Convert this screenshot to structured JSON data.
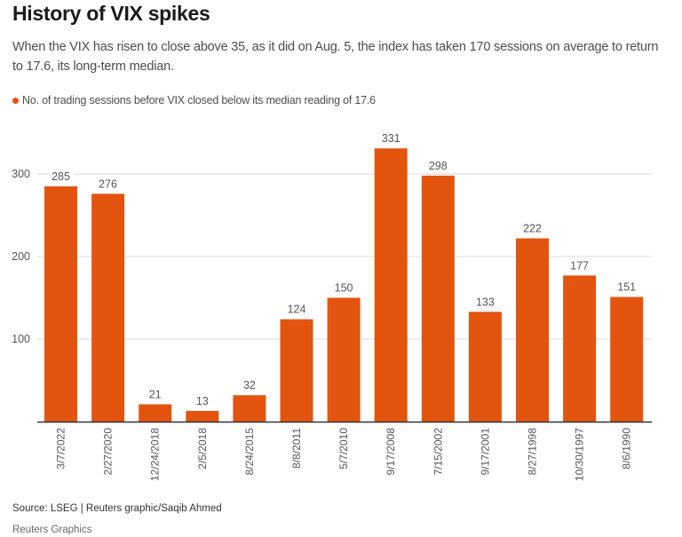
{
  "header": {
    "title": "History of VIX spikes",
    "subtitle": "When the VIX has risen to close above 35, as it did on Aug. 5, the index has taken 170 sessions on average to return to 17.6, its long-term median."
  },
  "footer": {
    "source": "Source: LSEG | Reuters graphic/Saqib Ahmed",
    "credit": "Reuters Graphics"
  },
  "colors": {
    "bar": "#e3550f",
    "grid": "#d9d9d9",
    "axis": "#333333",
    "label": "#555555"
  },
  "chart_data": {
    "type": "bar",
    "title": "History of VIX spikes",
    "xlabel": "",
    "ylabel": "",
    "legend": {
      "position": "top-left",
      "entries": [
        "No. of trading sessions before VIX closed below its median reading of 17.6"
      ]
    },
    "categories": [
      "3/7/2022",
      "2/27/2020",
      "12/24/2018",
      "2/5/2018",
      "8/24/2015",
      "8/8/2011",
      "5/7/2010",
      "9/17/2008",
      "7/15/2002",
      "9/17/2001",
      "8/27/1998",
      "10/30/1997",
      "8/6/1990"
    ],
    "series": [
      {
        "name": "No. of trading sessions before VIX closed below its median reading of 17.6",
        "values": [
          285,
          276,
          21,
          13,
          32,
          124,
          150,
          331,
          298,
          133,
          222,
          177,
          151
        ]
      }
    ],
    "ylim": [
      0,
      300
    ],
    "yticks": [
      100,
      200,
      300
    ],
    "grid": true,
    "data_labels": true,
    "x_tick_rotation": "vertical"
  }
}
